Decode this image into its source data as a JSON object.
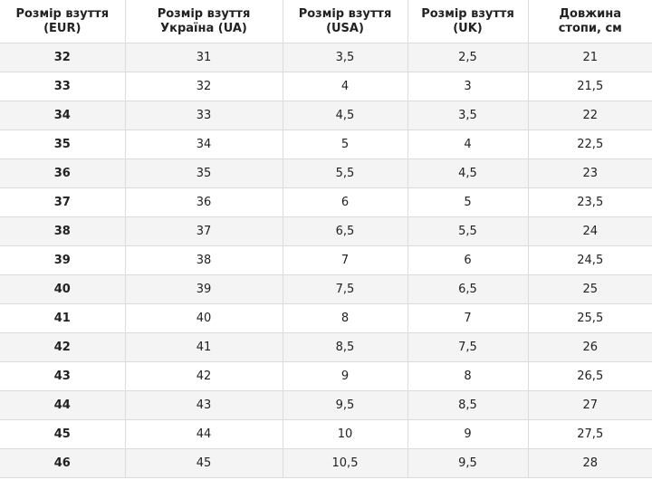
{
  "table": {
    "header": [
      "Розмір взуття\n(EUR)",
      "Розмір взуття\nУкраїна (UA)",
      "Розмір взуття\n(USA)",
      "Розмір взуття\n(UK)",
      "Довжина\nстопи, см"
    ],
    "rows": [
      [
        "32",
        "31",
        "3,5",
        "2,5",
        "21"
      ],
      [
        "33",
        "32",
        "4",
        "3",
        "21,5"
      ],
      [
        "34",
        "33",
        "4,5",
        "3,5",
        "22"
      ],
      [
        "35",
        "34",
        "5",
        "4",
        "22,5"
      ],
      [
        "36",
        "35",
        "5,5",
        "4,5",
        "23"
      ],
      [
        "37",
        "36",
        "6",
        "5",
        "23,5"
      ],
      [
        "38",
        "37",
        "6,5",
        "5,5",
        "24"
      ],
      [
        "39",
        "38",
        "7",
        "6",
        "24,5"
      ],
      [
        "40",
        "39",
        "7,5",
        "6,5",
        "25"
      ],
      [
        "41",
        "40",
        "8",
        "7",
        "25,5"
      ],
      [
        "42",
        "41",
        "8,5",
        "7,5",
        "26"
      ],
      [
        "43",
        "42",
        "9",
        "8",
        "26,5"
      ],
      [
        "44",
        "43",
        "9,5",
        "8,5",
        "27"
      ],
      [
        "45",
        "44",
        "10",
        "9",
        "27,5"
      ],
      [
        "46",
        "45",
        "10,5",
        "9,5",
        "28"
      ]
    ]
  }
}
